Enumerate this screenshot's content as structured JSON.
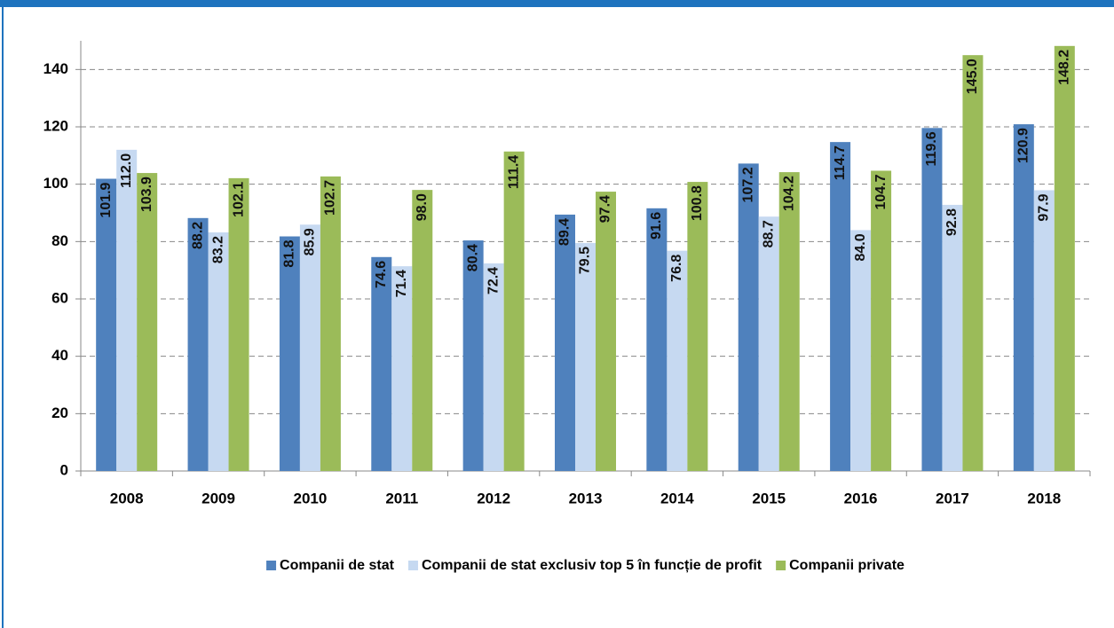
{
  "chart_data": {
    "type": "bar",
    "categories": [
      "2008",
      "2009",
      "2010",
      "2011",
      "2012",
      "2013",
      "2014",
      "2015",
      "2016",
      "2017",
      "2018"
    ],
    "series": [
      {
        "name": "Companii de stat",
        "color": "#4f81bd",
        "values": [
          101.9,
          88.2,
          81.8,
          74.6,
          80.4,
          89.4,
          91.6,
          107.2,
          114.7,
          119.6,
          120.9
        ],
        "value_labels": [
          "101.9",
          "88.2",
          "81.8",
          "74.6",
          "80.4",
          "89.4",
          "91.6",
          "107.2",
          "114.7",
          "119.6",
          "120.9"
        ]
      },
      {
        "name": "Companii de stat exclusiv top 5 în funcție de profit",
        "color": "#c6d9f1",
        "values": [
          112.0,
          83.2,
          85.9,
          71.4,
          72.4,
          79.5,
          76.8,
          88.7,
          84.0,
          92.8,
          97.9
        ],
        "value_labels": [
          "112.0",
          "83.2",
          "85.9",
          "71.4",
          "72.4",
          "79.5",
          "76.8",
          "88.7",
          "84.0",
          "92.8",
          "97.9"
        ]
      },
      {
        "name": "Companii private",
        "color": "#9bbb59",
        "values": [
          103.9,
          102.1,
          102.7,
          98.0,
          111.4,
          97.4,
          100.8,
          104.2,
          104.7,
          145.0,
          148.2
        ],
        "value_labels": [
          "103.9",
          "102.1",
          "102.7",
          "98.0",
          "111.4",
          "97.4",
          "100.8",
          "104.2",
          "104.7",
          "145.0",
          "148.2"
        ]
      }
    ],
    "ylim": [
      0,
      150
    ],
    "yticks": [
      0,
      20,
      40,
      60,
      80,
      100,
      120,
      140
    ],
    "grid": true,
    "legend": "bottom"
  }
}
